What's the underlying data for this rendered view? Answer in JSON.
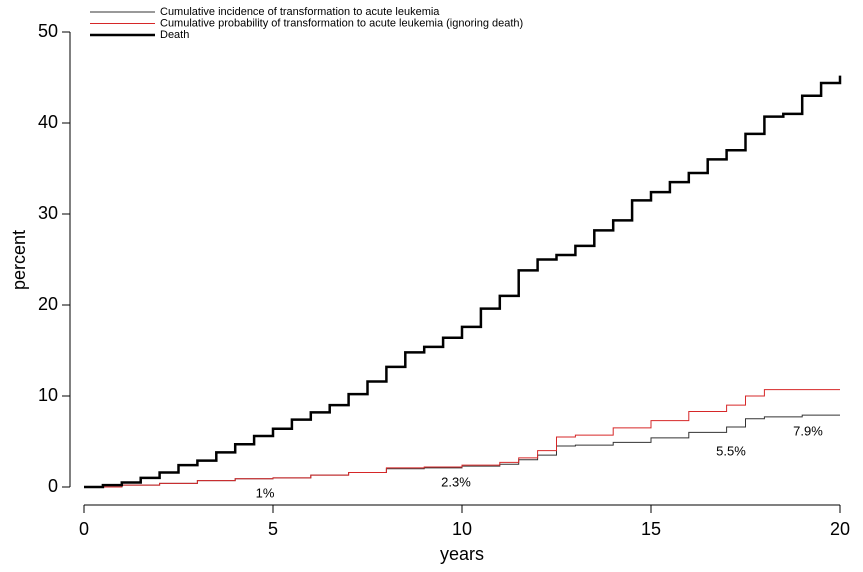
{
  "chart_data": {
    "type": "step",
    "x_label": "years",
    "y_label": "percent",
    "xlim": [
      0,
      20
    ],
    "xticks": [
      0,
      5,
      10,
      15,
      20
    ],
    "ylim": [
      0,
      50
    ],
    "yticks": [
      0,
      10,
      20,
      30,
      40,
      50
    ],
    "legend": "top-left",
    "series": [
      {
        "name": "Cumulative incidence of transformation to acute leukemia",
        "color": "#333333",
        "width": 1,
        "x": [
          0,
          1,
          2,
          3,
          4,
          5,
          6,
          7,
          8,
          9,
          10,
          11,
          11.5,
          12,
          12.5,
          13,
          14,
          15,
          16,
          17,
          17.5,
          18,
          19,
          20
        ],
        "values": [
          0,
          0.2,
          0.4,
          0.7,
          0.9,
          1.0,
          1.3,
          1.6,
          2.0,
          2.1,
          2.3,
          2.5,
          3.0,
          3.5,
          4.5,
          4.6,
          4.9,
          5.4,
          6.0,
          6.6,
          7.5,
          7.7,
          7.9,
          7.9
        ]
      },
      {
        "name": "Cumulative probability of transformation to acute leukemia (ignoring death)",
        "color": "#d62728",
        "width": 1,
        "x": [
          0,
          1,
          2,
          3,
          4,
          5,
          6,
          7,
          8,
          9,
          10,
          11,
          11.5,
          12,
          12.5,
          13,
          14,
          15,
          16,
          17,
          17.5,
          18,
          19,
          20
        ],
        "values": [
          0,
          0.2,
          0.4,
          0.7,
          0.9,
          1.0,
          1.3,
          1.6,
          2.1,
          2.2,
          2.4,
          2.7,
          3.2,
          4.0,
          5.5,
          5.7,
          6.5,
          7.3,
          8.3,
          9.0,
          10.0,
          10.7,
          10.7,
          10.7
        ]
      },
      {
        "name": "Death",
        "color": "#000000",
        "width": 2.5,
        "x": [
          0,
          0.5,
          1,
          1.5,
          2,
          2.5,
          3,
          3.5,
          4,
          4.5,
          5,
          5.5,
          6,
          6.5,
          7,
          7.5,
          8,
          8.5,
          9,
          9.5,
          10,
          10.5,
          11,
          11.5,
          12,
          12.5,
          13,
          13.5,
          14,
          14.5,
          15,
          15.5,
          16,
          16.5,
          17,
          17.5,
          18,
          18.5,
          19,
          19.5,
          20
        ],
        "values": [
          0,
          0.2,
          0.5,
          1.0,
          1.6,
          2.4,
          2.9,
          3.8,
          4.7,
          5.6,
          6.4,
          7.4,
          8.2,
          9.0,
          10.2,
          11.6,
          13.2,
          14.8,
          15.4,
          16.4,
          17.6,
          19.6,
          21.0,
          23.8,
          25.0,
          25.5,
          26.5,
          28.2,
          29.3,
          31.5,
          32.4,
          33.5,
          34.5,
          36.0,
          37.0,
          38.8,
          40.7,
          41.0,
          43.0,
          44.4,
          45.2
        ]
      }
    ],
    "annotations": [
      "1%",
      "2.3%",
      "5.5%",
      "7.9%"
    ]
  }
}
